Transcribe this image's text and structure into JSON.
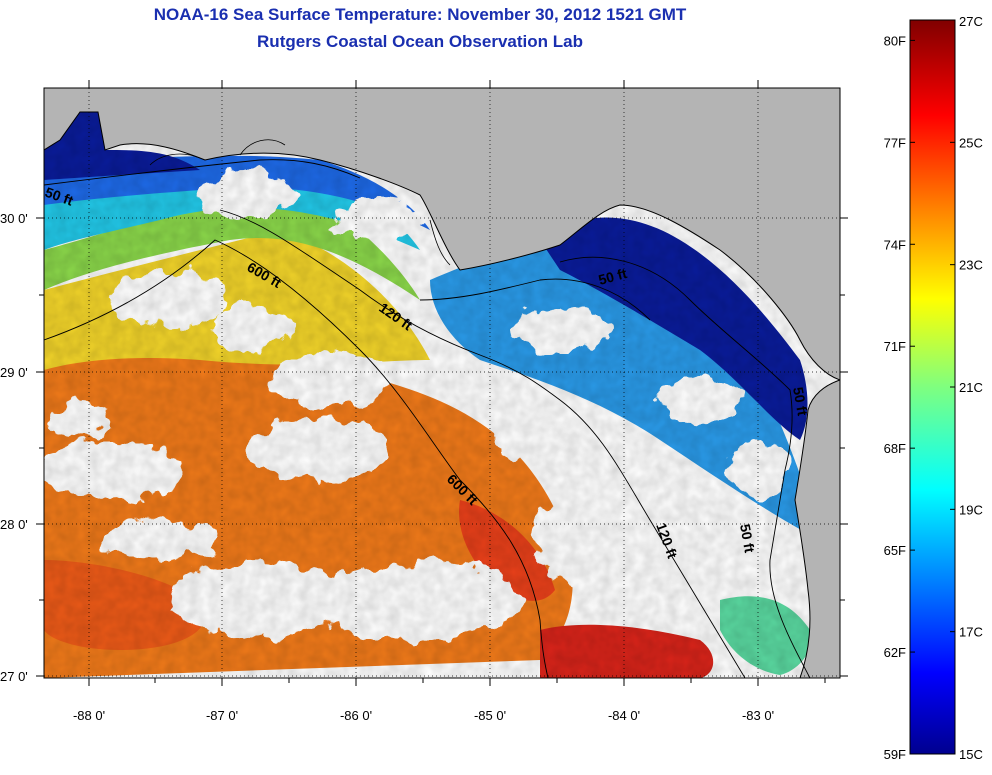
{
  "title": {
    "line1": "NOAA-16 Sea Surface Temperature:  November 30, 2012 1521 GMT",
    "line2": "Rutgers Coastal Ocean Observation Lab"
  },
  "map": {
    "lon_ticks": [
      "-88 0'",
      "-87 0'",
      "-86 0'",
      "-85 0'",
      "-84 0'",
      "-83 0'"
    ],
    "lat_ticks": [
      "30 0'",
      "29 0'",
      "28 0'",
      "27 0'"
    ],
    "contour_labels": [
      "50 ft",
      "600 ft",
      "120 ft",
      "50 ft",
      "600 ft",
      "120 ft",
      "50 ft",
      "50 ft"
    ],
    "colors": {
      "land": "#b4b4b4",
      "cloud": "#ffffff",
      "warm": "#f07a1a",
      "hot": "#d8241a",
      "yellow": "#f2d42a",
      "cyan": "#22c8e8",
      "blue": "#1848d8",
      "navy": "#0a1c9a"
    }
  },
  "colorbar": {
    "fahrenheit": [
      "80F",
      "77F",
      "74F",
      "71F",
      "68F",
      "65F",
      "62F",
      "59F"
    ],
    "celsius": [
      "27C",
      "25C",
      "23C",
      "21C",
      "19C",
      "17C",
      "15C"
    ],
    "colormap": "jet",
    "range_c": [
      15,
      27
    ],
    "range_f": [
      59,
      80.6
    ]
  }
}
